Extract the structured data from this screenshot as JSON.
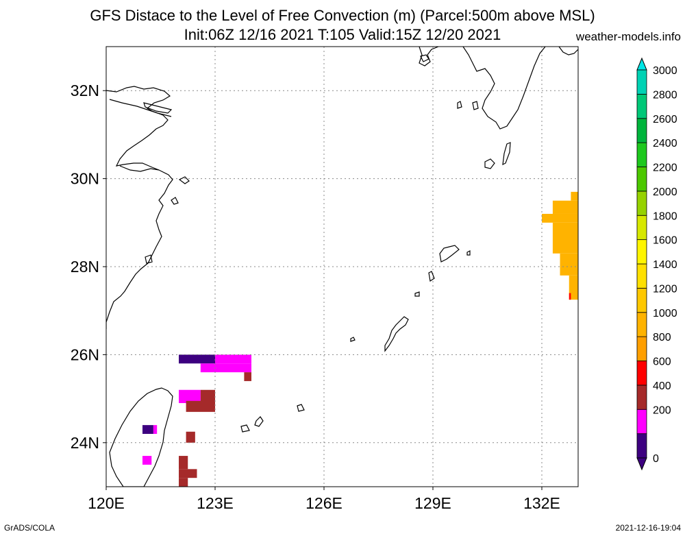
{
  "header": {
    "title_line1": "GFS Distace to the Level of Free Convection (m) (Parcel:500m above MSL)",
    "title_line2": "Init:06Z 12/16 2021 T:105 Valid:15Z 12/20 2021",
    "site": "weather-models.info"
  },
  "footer": {
    "left": "GrADS/COLA",
    "right": "2021-12-16-19:04"
  },
  "map": {
    "lon_range": [
      120,
      133
    ],
    "lat_range": [
      23,
      33
    ],
    "lon_ticks": [
      {
        "value": 120,
        "label": "120E"
      },
      {
        "value": 123,
        "label": "123E"
      },
      {
        "value": 126,
        "label": "126E"
      },
      {
        "value": 129,
        "label": "129E"
      },
      {
        "value": 132,
        "label": "132E"
      }
    ],
    "lat_ticks": [
      {
        "value": 24,
        "label": "24N"
      },
      {
        "value": 26,
        "label": "26N"
      },
      {
        "value": 28,
        "label": "28N"
      },
      {
        "value": 30,
        "label": "30N"
      },
      {
        "value": 32,
        "label": "32N"
      }
    ],
    "grid": true,
    "coastline_color": "#000000"
  },
  "colorbar": {
    "levels": [
      {
        "value": 0,
        "label": "0",
        "color": "#3d0080"
      },
      {
        "value": 100,
        "label": "",
        "color": "#3d0080"
      },
      {
        "value": 200,
        "label": "200",
        "color": "#ff00ff"
      },
      {
        "value": 400,
        "label": "400",
        "color": "#a52a2a"
      },
      {
        "value": 600,
        "label": "600",
        "color": "#ff0000"
      },
      {
        "value": 800,
        "label": "800",
        "color": "#ff9f00"
      },
      {
        "value": 1000,
        "label": "1000",
        "color": "#ffb300"
      },
      {
        "value": 1200,
        "label": "1200",
        "color": "#ffc800"
      },
      {
        "value": 1400,
        "label": "1400",
        "color": "#ffe000"
      },
      {
        "value": 1600,
        "label": "1600",
        "color": "#fff500"
      },
      {
        "value": 1800,
        "label": "1800",
        "color": "#d7e800"
      },
      {
        "value": 2000,
        "label": "2000",
        "color": "#96d200"
      },
      {
        "value": 2200,
        "label": "2200",
        "color": "#4cc800"
      },
      {
        "value": 2400,
        "label": "2400",
        "color": "#1ec81e"
      },
      {
        "value": 2600,
        "label": "2600",
        "color": "#00b43c"
      },
      {
        "value": 2800,
        "label": "2800",
        "color": "#00c878"
      },
      {
        "value": 3000,
        "label": "3000",
        "color": "#00d2b4"
      }
    ],
    "over_color": "#00e6e6",
    "under_color": "#3d0080"
  },
  "field": [
    {
      "lon": [
        122.0,
        123.0
      ],
      "lat": [
        25.8,
        26.0
      ],
      "value": 0,
      "color": "#3d0080"
    },
    {
      "lon": [
        123.0,
        124.0
      ],
      "lat": [
        25.8,
        26.0
      ],
      "value": 200,
      "color": "#ff00ff"
    },
    {
      "lon": [
        122.6,
        124.0
      ],
      "lat": [
        25.6,
        25.8
      ],
      "value": 200,
      "color": "#ff00ff"
    },
    {
      "lon": [
        123.8,
        124.0
      ],
      "lat": [
        25.4,
        25.6
      ],
      "value": 400,
      "color": "#a52a2a"
    },
    {
      "lon": [
        122.0,
        122.6
      ],
      "lat": [
        24.9,
        25.2
      ],
      "value": 200,
      "color": "#ff00ff"
    },
    {
      "lon": [
        122.6,
        123.0
      ],
      "lat": [
        24.8,
        25.2
      ],
      "value": 400,
      "color": "#a52a2a"
    },
    {
      "lon": [
        122.2,
        123.0
      ],
      "lat": [
        24.7,
        24.95
      ],
      "value": 400,
      "color": "#a52a2a"
    },
    {
      "lon": [
        121.0,
        121.3
      ],
      "lat": [
        24.2,
        24.4
      ],
      "value": 0,
      "color": "#3d0080"
    },
    {
      "lon": [
        121.3,
        121.4
      ],
      "lat": [
        24.2,
        24.4
      ],
      "value": 200,
      "color": "#ff00ff"
    },
    {
      "lon": [
        122.2,
        122.45
      ],
      "lat": [
        24.0,
        24.25
      ],
      "value": 400,
      "color": "#a52a2a"
    },
    {
      "lon": [
        121.0,
        121.25
      ],
      "lat": [
        23.5,
        23.7
      ],
      "value": 200,
      "color": "#ff00ff"
    },
    {
      "lon": [
        122.0,
        122.25
      ],
      "lat": [
        23.4,
        23.7
      ],
      "value": 400,
      "color": "#a52a2a"
    },
    {
      "lon": [
        122.0,
        122.5
      ],
      "lat": [
        23.2,
        23.4
      ],
      "value": 400,
      "color": "#a52a2a"
    },
    {
      "lon": [
        122.0,
        122.25
      ],
      "lat": [
        23.0,
        23.2
      ],
      "value": 400,
      "color": "#a52a2a"
    },
    {
      "lon": [
        132.8,
        133.0
      ],
      "lat": [
        29.5,
        29.7
      ],
      "value": 1000,
      "color": "#ffb300"
    },
    {
      "lon": [
        132.3,
        133.0
      ],
      "lat": [
        29.2,
        29.5
      ],
      "value": 1000,
      "color": "#ffb300"
    },
    {
      "lon": [
        132.0,
        133.0
      ],
      "lat": [
        29.0,
        29.2
      ],
      "value": 1000,
      "color": "#ffb300"
    },
    {
      "lon": [
        132.3,
        133.0
      ],
      "lat": [
        28.3,
        29.0
      ],
      "value": 1000,
      "color": "#ffb300"
    },
    {
      "lon": [
        132.5,
        133.0
      ],
      "lat": [
        27.8,
        28.3
      ],
      "value": 1000,
      "color": "#ffb300"
    },
    {
      "lon": [
        132.75,
        133.0
      ],
      "lat": [
        27.25,
        27.8
      ],
      "value": 1000,
      "color": "#ffb300"
    },
    {
      "lon": [
        132.75,
        132.8
      ],
      "lat": [
        27.25,
        27.4
      ],
      "value": 600,
      "color": "#ff0000"
    }
  ]
}
